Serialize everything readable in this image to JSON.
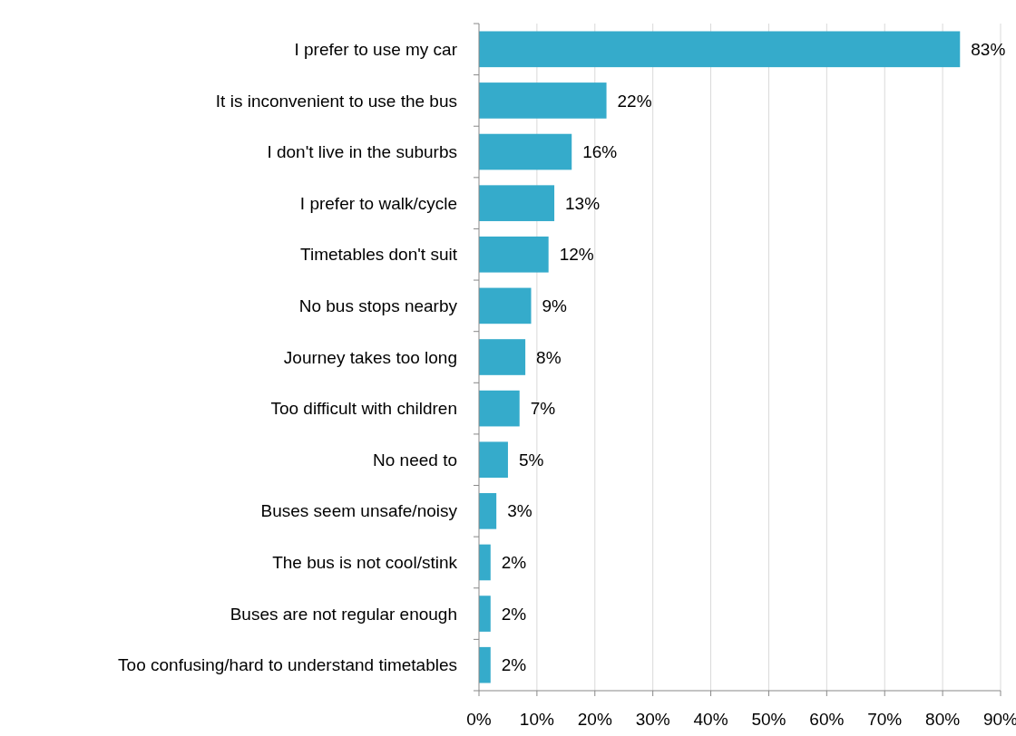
{
  "chart_data": {
    "type": "bar",
    "orientation": "horizontal",
    "categories": [
      "I prefer to use my car",
      "It is inconvenient to use the bus",
      "I don't live in the suburbs",
      "I prefer to walk/cycle",
      "Timetables don't suit",
      "No bus stops nearby",
      "Journey takes too long",
      "Too difficult with children",
      "No need to",
      "Buses seem unsafe/noisy",
      "The bus is not cool/stink",
      "Buses are not regular enough",
      "Too confusing/hard to understand timetables"
    ],
    "values": [
      83,
      22,
      16,
      13,
      12,
      9,
      8,
      7,
      5,
      3,
      2,
      2,
      2
    ],
    "color": "#35abcb",
    "xlim": [
      0,
      90
    ],
    "xticks": [
      {
        "value": 0,
        "label": "0%"
      },
      {
        "value": 10,
        "label": "10%"
      },
      {
        "value": 20,
        "label": "20%"
      },
      {
        "value": 30,
        "label": "30%"
      },
      {
        "value": 40,
        "label": "40%"
      },
      {
        "value": 50,
        "label": "50%"
      },
      {
        "value": 60,
        "label": "60%"
      },
      {
        "value": 70,
        "label": "70%"
      },
      {
        "value": 80,
        "label": "80%"
      },
      {
        "value": 90,
        "label": "90%"
      }
    ],
    "value_labels": [
      "83%",
      "22%",
      "16%",
      "13%",
      "12%",
      "9%",
      "8%",
      "7%",
      "5%",
      "3%",
      "2%",
      "2%",
      "2%"
    ],
    "grid": "x"
  }
}
